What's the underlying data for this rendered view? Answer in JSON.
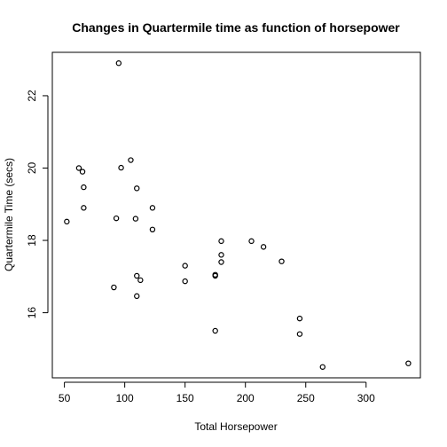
{
  "chart_data": {
    "type": "scatter",
    "title": "Changes in Quartermile time as function of horsepower",
    "xlabel": "Total Horsepower",
    "ylabel": "Quartermile Time (secs)",
    "xlim": [
      40,
      345
    ],
    "ylim": [
      14.2,
      23.2
    ],
    "xticks": [
      50,
      100,
      150,
      200,
      250,
      300
    ],
    "yticks": [
      16,
      18,
      20,
      22
    ],
    "grid": false,
    "points": [
      {
        "x": 52,
        "y": 18.52
      },
      {
        "x": 62,
        "y": 20.0
      },
      {
        "x": 65,
        "y": 19.9
      },
      {
        "x": 66,
        "y": 19.47
      },
      {
        "x": 66,
        "y": 18.9
      },
      {
        "x": 91,
        "y": 16.7
      },
      {
        "x": 93,
        "y": 18.61
      },
      {
        "x": 95,
        "y": 22.9
      },
      {
        "x": 97,
        "y": 20.01
      },
      {
        "x": 105,
        "y": 20.22
      },
      {
        "x": 109,
        "y": 18.6
      },
      {
        "x": 110,
        "y": 19.44
      },
      {
        "x": 110,
        "y": 17.02
      },
      {
        "x": 110,
        "y": 16.46
      },
      {
        "x": 113,
        "y": 16.9
      },
      {
        "x": 123,
        "y": 18.9
      },
      {
        "x": 123,
        "y": 18.3
      },
      {
        "x": 150,
        "y": 17.3
      },
      {
        "x": 150,
        "y": 16.87
      },
      {
        "x": 175,
        "y": 17.02
      },
      {
        "x": 175,
        "y": 17.05
      },
      {
        "x": 175,
        "y": 15.5
      },
      {
        "x": 180,
        "y": 17.98
      },
      {
        "x": 180,
        "y": 17.6
      },
      {
        "x": 180,
        "y": 17.4
      },
      {
        "x": 205,
        "y": 17.98
      },
      {
        "x": 215,
        "y": 17.82
      },
      {
        "x": 230,
        "y": 17.42
      },
      {
        "x": 245,
        "y": 15.84
      },
      {
        "x": 245,
        "y": 15.41
      },
      {
        "x": 264,
        "y": 14.5
      },
      {
        "x": 335,
        "y": 14.6
      }
    ]
  }
}
